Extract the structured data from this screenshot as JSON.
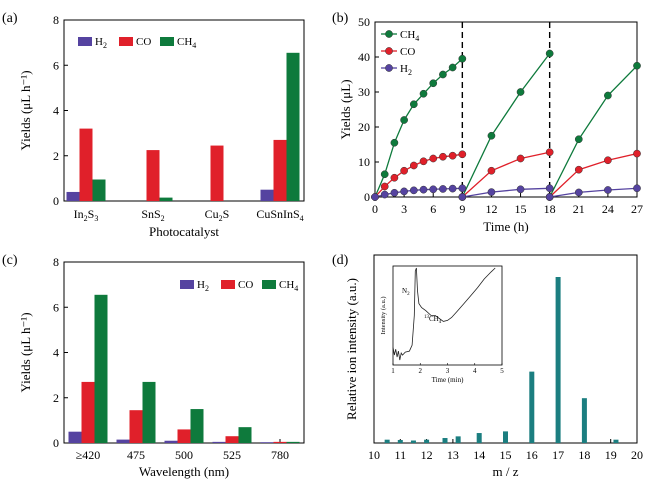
{
  "colors": {
    "h2": "#5543a0",
    "co": "#e0202a",
    "ch4": "#0e7a3c",
    "teal": "#1b7e80"
  },
  "chart_data": [
    {
      "panel": "(a)",
      "type": "bar",
      "ylabel": "Yields (μL h⁻¹)",
      "xlabel": "Photocatalyst",
      "ylim": [
        0,
        8
      ],
      "yticks": [
        "0",
        "2",
        "4",
        "6",
        "8"
      ],
      "categories": [
        {
          "base": "In",
          "s1": "2",
          "mid": "S",
          "s2": "3",
          "end": ""
        },
        {
          "base": "SnS",
          "s1": "2",
          "mid": "",
          "s2": "",
          "end": ""
        },
        {
          "base": "Cu",
          "s1": "2",
          "mid": "S",
          "s2": "",
          "end": ""
        },
        {
          "base": "CuSnInS",
          "s1": "4",
          "mid": "",
          "s2": "",
          "end": ""
        }
      ],
      "series": [
        {
          "name": "H2",
          "values": [
            0.4,
            0,
            0,
            0.5
          ]
        },
        {
          "name": "CO",
          "values": [
            3.2,
            2.25,
            2.45,
            2.7
          ]
        },
        {
          "name": "CH4",
          "values": [
            0.95,
            0.15,
            0,
            6.55
          ]
        }
      ],
      "legend": [
        {
          "base": "H",
          "sub": "2",
          "color": "#5543a0"
        },
        {
          "base": "CO",
          "sub": "",
          "color": "#e0202a"
        },
        {
          "base": "CH",
          "sub": "4",
          "color": "#0e7a3c"
        }
      ]
    },
    {
      "panel": "(b)",
      "type": "line",
      "ylabel": "Yields (μL)",
      "xlabel": "Time (h)",
      "xlim": [
        0,
        27
      ],
      "ylim": [
        0,
        50
      ],
      "xticks": [
        "0",
        "3",
        "6",
        "9",
        "12",
        "15",
        "18",
        "21",
        "24",
        "27"
      ],
      "yticks": [
        "0",
        "10",
        "20",
        "30",
        "40",
        "50"
      ],
      "cycle_dividers": [
        9,
        18
      ],
      "legend": [
        {
          "base": "CH",
          "sub": "4",
          "color": "#0e7a3c"
        },
        {
          "base": "CO",
          "sub": "",
          "color": "#e0202a"
        },
        {
          "base": "H",
          "sub": "2",
          "color": "#5543a0"
        }
      ],
      "series": [
        {
          "name": "CH4",
          "segments": [
            [
              [
                0,
                0
              ],
              [
                1,
                6.5
              ],
              [
                2,
                15.5
              ],
              [
                3,
                22
              ],
              [
                4,
                26.5
              ],
              [
                5,
                29.5
              ],
              [
                6,
                32.5
              ],
              [
                7,
                35
              ],
              [
                8,
                37
              ],
              [
                9,
                39.5
              ]
            ],
            [
              [
                9,
                0
              ],
              [
                12,
                17.5
              ],
              [
                15,
                30
              ],
              [
                18,
                41
              ]
            ],
            [
              [
                18,
                0
              ],
              [
                21,
                16.5
              ],
              [
                24,
                29
              ],
              [
                27,
                37.5
              ]
            ]
          ]
        },
        {
          "name": "CO",
          "segments": [
            [
              [
                0,
                0
              ],
              [
                1,
                3
              ],
              [
                2,
                5.5
              ],
              [
                3,
                7.5
              ],
              [
                4,
                9
              ],
              [
                5,
                10.2
              ],
              [
                6,
                11
              ],
              [
                7,
                11.5
              ],
              [
                8,
                11.8
              ],
              [
                9,
                12.2
              ]
            ],
            [
              [
                9,
                0
              ],
              [
                12,
                7.5
              ],
              [
                15,
                11
              ],
              [
                18,
                12.8
              ]
            ],
            [
              [
                18,
                0
              ],
              [
                21,
                7.8
              ],
              [
                24,
                10.5
              ],
              [
                27,
                12.4
              ]
            ]
          ]
        },
        {
          "name": "H2",
          "segments": [
            [
              [
                0,
                0
              ],
              [
                1,
                0.7
              ],
              [
                2,
                1.2
              ],
              [
                3,
                1.6
              ],
              [
                4,
                1.9
              ],
              [
                5,
                2.1
              ],
              [
                6,
                2.2
              ],
              [
                7,
                2.3
              ],
              [
                8,
                2.4
              ],
              [
                9,
                2.5
              ]
            ],
            [
              [
                9,
                0
              ],
              [
                12,
                1.4
              ],
              [
                15,
                2.2
              ],
              [
                18,
                2.5
              ]
            ],
            [
              [
                18,
                0
              ],
              [
                21,
                1.3
              ],
              [
                24,
                2
              ],
              [
                27,
                2.5
              ]
            ]
          ]
        }
      ]
    },
    {
      "panel": "(c)",
      "type": "bar",
      "ylabel": "Yields (μL h⁻¹)",
      "xlabel": "Wavelength (nm)",
      "ylim": [
        0,
        8
      ],
      "yticks": [
        "0",
        "2",
        "4",
        "6",
        "8"
      ],
      "categories": [
        "≥420",
        "475",
        "500",
        "525",
        "780"
      ],
      "series": [
        {
          "name": "H2",
          "values": [
            0.5,
            0.15,
            0.1,
            0.05,
            0.02
          ]
        },
        {
          "name": "CO",
          "values": [
            2.7,
            1.45,
            0.6,
            0.3,
            0.05
          ]
        },
        {
          "name": "CH4",
          "values": [
            6.55,
            2.7,
            1.5,
            0.7,
            0.05
          ]
        }
      ],
      "legend": [
        {
          "base": "H",
          "sub": "2",
          "color": "#5543a0"
        },
        {
          "base": "CO",
          "sub": "",
          "color": "#e0202a"
        },
        {
          "base": "CH",
          "sub": "4",
          "color": "#0e7a3c"
        }
      ]
    },
    {
      "panel": "(d)",
      "type": "bar",
      "ylabel": "Relative ion intensity (a.u.)",
      "xlabel": "m / z",
      "xlim": [
        10,
        20
      ],
      "xticks": [
        "10",
        "11",
        "12",
        "13",
        "14",
        "15",
        "16",
        "17",
        "18",
        "19",
        "20"
      ],
      "x": [
        10.5,
        11,
        11.5,
        12,
        12.7,
        13.2,
        14,
        15,
        16,
        17,
        18,
        19.2
      ],
      "values": [
        0.02,
        0.018,
        0.015,
        0.02,
        0.03,
        0.04,
        0.06,
        0.07,
        0.43,
        1.0,
        0.27,
        0.02
      ],
      "inset": {
        "xlabel": "Time (min)",
        "ylabel": "Intensity (a.u.)",
        "xticks": [
          "1",
          "2",
          "3",
          "4",
          "5"
        ],
        "n2_label": {
          "base": "N",
          "sub": "2"
        },
        "ch4_label": {
          "sup": "13",
          "base": "CH",
          "sub": "4"
        }
      }
    }
  ]
}
